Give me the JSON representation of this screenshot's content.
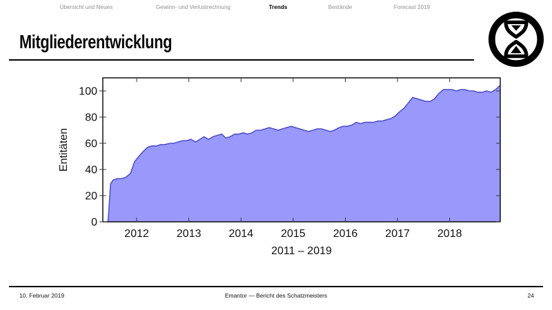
{
  "nav": {
    "items": [
      {
        "label": "Übersicht und Neues",
        "active": false
      },
      {
        "label": "Gewinn- und Verlustrechnung",
        "active": false
      },
      {
        "label": "Trends",
        "active": true
      },
      {
        "label": "Bestände",
        "active": false
      },
      {
        "label": "Forecast 2019",
        "active": false
      }
    ]
  },
  "title": "Mitgliederentwicklung",
  "logo": {
    "icon": "hourglass-in-circle"
  },
  "footer": {
    "date": "10. Februar 2019",
    "center": "Emantor — Bericht des Schatzmeisters",
    "page": "24"
  },
  "chart_data": {
    "type": "area",
    "title": "",
    "xlabel": "2011 – 2019",
    "ylabel": "Entitäten",
    "x_ticks": [
      2012,
      2013,
      2014,
      2015,
      2016,
      2017,
      2018
    ],
    "y_ticks": [
      0,
      20,
      40,
      60,
      80,
      100
    ],
    "xlim": [
      2011.35,
      2018.97
    ],
    "ylim": [
      0,
      110
    ],
    "grid": false,
    "legend": "none",
    "fill_color": "#9999fc",
    "line_color": "#5151c8",
    "series": [
      {
        "name": "Entitäten",
        "points": [
          [
            2011.45,
            0
          ],
          [
            2011.5,
            29
          ],
          [
            2011.55,
            32
          ],
          [
            2011.63,
            33
          ],
          [
            2011.71,
            33
          ],
          [
            2011.79,
            34
          ],
          [
            2011.88,
            37
          ],
          [
            2011.96,
            46
          ],
          [
            2012.04,
            50
          ],
          [
            2012.13,
            54
          ],
          [
            2012.21,
            57
          ],
          [
            2012.29,
            58
          ],
          [
            2012.38,
            58
          ],
          [
            2012.46,
            59
          ],
          [
            2012.54,
            59
          ],
          [
            2012.63,
            60
          ],
          [
            2012.71,
            60
          ],
          [
            2012.79,
            61
          ],
          [
            2012.88,
            62
          ],
          [
            2012.96,
            62
          ],
          [
            2013.04,
            63
          ],
          [
            2013.13,
            61
          ],
          [
            2013.21,
            63
          ],
          [
            2013.29,
            65
          ],
          [
            2013.38,
            63
          ],
          [
            2013.46,
            65
          ],
          [
            2013.54,
            66
          ],
          [
            2013.63,
            67
          ],
          [
            2013.71,
            64
          ],
          [
            2013.79,
            65
          ],
          [
            2013.88,
            67
          ],
          [
            2013.96,
            67
          ],
          [
            2014.04,
            68
          ],
          [
            2014.13,
            67
          ],
          [
            2014.21,
            68
          ],
          [
            2014.29,
            70
          ],
          [
            2014.38,
            70
          ],
          [
            2014.46,
            71
          ],
          [
            2014.54,
            72
          ],
          [
            2014.63,
            71
          ],
          [
            2014.71,
            70
          ],
          [
            2014.79,
            71
          ],
          [
            2014.88,
            72
          ],
          [
            2014.96,
            73
          ],
          [
            2015.04,
            72
          ],
          [
            2015.13,
            71
          ],
          [
            2015.21,
            70
          ],
          [
            2015.29,
            69
          ],
          [
            2015.38,
            70
          ],
          [
            2015.46,
            71
          ],
          [
            2015.54,
            71
          ],
          [
            2015.63,
            70
          ],
          [
            2015.71,
            69
          ],
          [
            2015.79,
            70
          ],
          [
            2015.88,
            72
          ],
          [
            2015.96,
            73
          ],
          [
            2016.04,
            73
          ],
          [
            2016.13,
            74
          ],
          [
            2016.21,
            76
          ],
          [
            2016.29,
            75
          ],
          [
            2016.38,
            76
          ],
          [
            2016.46,
            76
          ],
          [
            2016.54,
            76
          ],
          [
            2016.63,
            77
          ],
          [
            2016.71,
            77
          ],
          [
            2016.79,
            78
          ],
          [
            2016.88,
            79
          ],
          [
            2016.96,
            81
          ],
          [
            2017.04,
            84
          ],
          [
            2017.13,
            87
          ],
          [
            2017.21,
            91
          ],
          [
            2017.29,
            95
          ],
          [
            2017.38,
            94
          ],
          [
            2017.46,
            93
          ],
          [
            2017.54,
            92
          ],
          [
            2017.63,
            92
          ],
          [
            2017.71,
            94
          ],
          [
            2017.79,
            98
          ],
          [
            2017.88,
            101
          ],
          [
            2017.96,
            101
          ],
          [
            2018.04,
            101
          ],
          [
            2018.13,
            100
          ],
          [
            2018.21,
            101
          ],
          [
            2018.29,
            101
          ],
          [
            2018.38,
            100
          ],
          [
            2018.46,
            100
          ],
          [
            2018.54,
            99
          ],
          [
            2018.63,
            99
          ],
          [
            2018.71,
            100
          ],
          [
            2018.79,
            99
          ],
          [
            2018.88,
            101
          ],
          [
            2018.96,
            104
          ]
        ]
      }
    ]
  }
}
